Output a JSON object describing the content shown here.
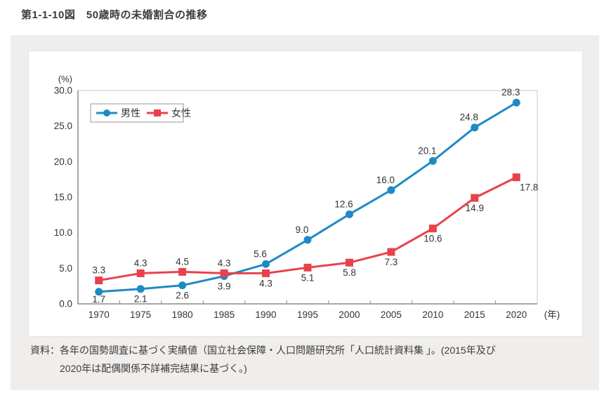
{
  "page": {
    "title": "第1-1-10図　50歳時の未婚割合の推移"
  },
  "chart_data": {
    "type": "line",
    "title": "50歳時の未婚割合の推移",
    "ylabel": "(%)",
    "xlabel": "(年)",
    "ylim": [
      0,
      30
    ],
    "ytick_step": 5.0,
    "grid": false,
    "legend_position": "top-left",
    "categories": [
      "1970",
      "1975",
      "1980",
      "1985",
      "1990",
      "1995",
      "2000",
      "2005",
      "2010",
      "2015",
      "2020"
    ],
    "series": [
      {
        "name": "男性",
        "marker": "circle",
        "color": "#1e8ac4",
        "values": [
          1.7,
          2.1,
          2.6,
          3.9,
          5.6,
          9.0,
          12.6,
          16.0,
          20.1,
          24.8,
          28.3
        ]
      },
      {
        "name": "女性",
        "marker": "square",
        "color": "#e8414d",
        "values": [
          3.3,
          4.3,
          4.5,
          4.3,
          4.3,
          5.1,
          5.8,
          7.3,
          10.6,
          14.9,
          17.8
        ]
      }
    ]
  },
  "source": {
    "label": "資料：",
    "line1": "各年の国勢調査に基づく実績値（国立社会保障・人口問題研究所「人口統計資料集 」。(2015年及び",
    "line2": "2020年は配偶関係不詳補完結果に基づく。)"
  },
  "colors": {
    "panel_bg": "#f0eeec",
    "axis": "#8c8c8c",
    "plot_border": "#c9c9c9",
    "text": "#333333"
  }
}
